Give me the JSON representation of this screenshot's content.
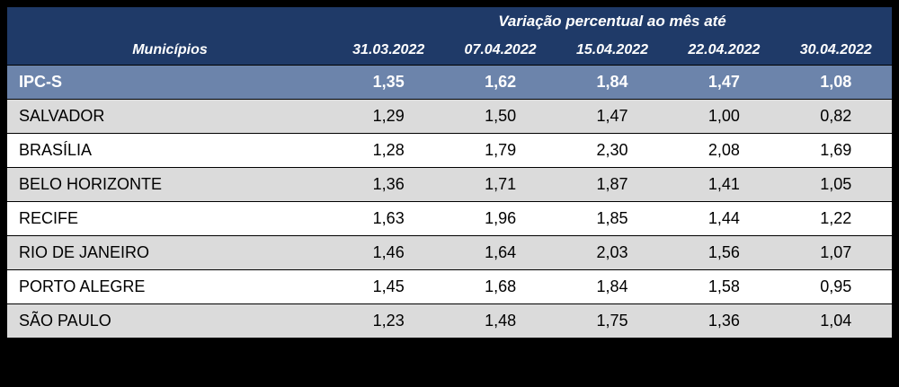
{
  "chart_data": {
    "type": "table",
    "title": "Variação percentual ao mês até",
    "row_header_label": "Municípios",
    "columns": [
      "31.03.2022",
      "07.04.2022",
      "15.04.2022",
      "22.04.2022",
      "30.04.2022"
    ],
    "summary_row": {
      "label": "IPC-S",
      "values": [
        "1,35",
        "1,62",
        "1,84",
        "1,47",
        "1,08"
      ]
    },
    "rows": [
      {
        "label": "SALVADOR",
        "values": [
          "1,29",
          "1,50",
          "1,47",
          "1,00",
          "0,82"
        ]
      },
      {
        "label": "BRASÍLIA",
        "values": [
          "1,28",
          "1,79",
          "2,30",
          "2,08",
          "1,69"
        ]
      },
      {
        "label": "BELO HORIZONTE",
        "values": [
          "1,36",
          "1,71",
          "1,87",
          "1,41",
          "1,05"
        ]
      },
      {
        "label": "RECIFE",
        "values": [
          "1,63",
          "1,96",
          "1,85",
          "1,44",
          "1,22"
        ]
      },
      {
        "label": "RIO DE JANEIRO",
        "values": [
          "1,46",
          "1,64",
          "2,03",
          "1,56",
          "1,07"
        ]
      },
      {
        "label": "PORTO ALEGRE",
        "values": [
          "1,45",
          "1,68",
          "1,84",
          "1,58",
          "0,95"
        ]
      },
      {
        "label": "SÃO PAULO",
        "values": [
          "1,23",
          "1,48",
          "1,75",
          "1,36",
          "1,04"
        ]
      }
    ],
    "legend_position": "none",
    "grid": "horizontal-dividers"
  },
  "colors": {
    "page_bg": "#000000",
    "header_bg": "#1F3A68",
    "header_text": "#FFFFFF",
    "summary_bg": "#6C84AB",
    "summary_text": "#FFFFFF",
    "stripe_bg": "#DBDBDB",
    "row_bg": "#FFFFFF",
    "body_text": "#000000",
    "divider": "#000000"
  }
}
